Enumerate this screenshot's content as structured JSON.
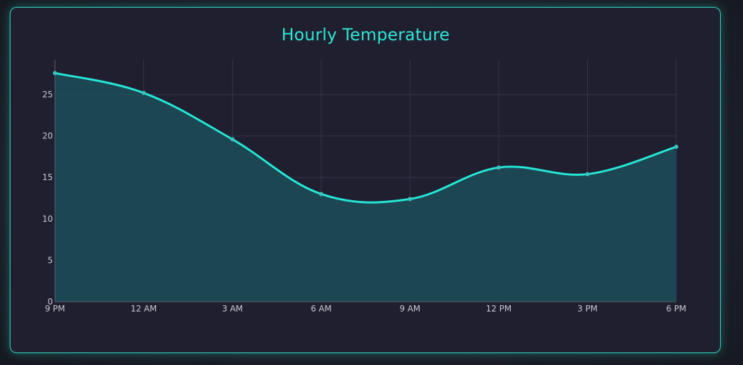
{
  "chart_data": {
    "type": "area",
    "title": "Hourly Temperature",
    "xlabel": "",
    "ylabel": "",
    "categories": [
      "9 PM",
      "12 AM",
      "3 AM",
      "6 AM",
      "9 AM",
      "12 PM",
      "3 PM",
      "6 PM"
    ],
    "series": [
      {
        "values": [
          27.6,
          25.2,
          19.6,
          13.0,
          12.4,
          16.2,
          15.4,
          18.7
        ]
      }
    ],
    "ylim": [
      0,
      29.2
    ],
    "yticks": [
      0,
      5,
      10,
      15,
      20,
      25
    ],
    "grid": true,
    "legend": "none",
    "colors": {
      "line": "#24e8d8",
      "fill": "#1c4b56",
      "grid": "#33364a",
      "title": "#2ee6d6",
      "border": "#2fd9c8"
    }
  }
}
